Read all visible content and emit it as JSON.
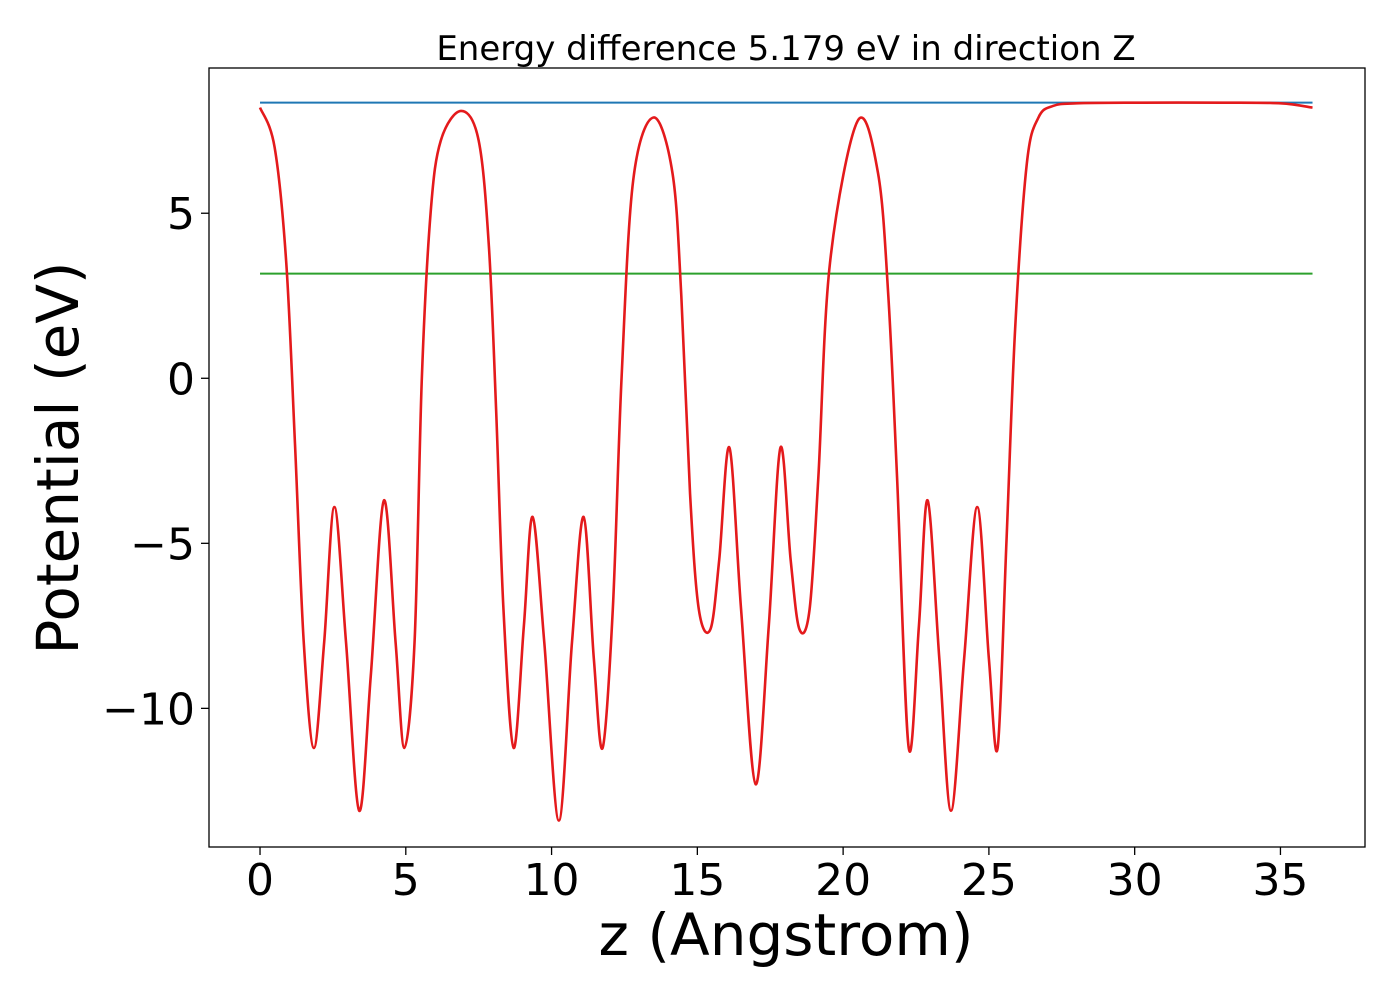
{
  "chart_data": {
    "type": "line",
    "title": "Energy difference 5.179 eV in direction Z",
    "xlabel": "z (Angstrom)",
    "ylabel": "Potential (eV)",
    "xlim": [
      -1.75,
      37.9
    ],
    "ylim": [
      -14.2,
      9.4
    ],
    "xticks": [
      0,
      5,
      10,
      15,
      20,
      25,
      30,
      35
    ],
    "yticks": [
      5,
      0,
      -5,
      -10
    ],
    "xtick_labels": [
      "0",
      "5",
      "10",
      "15",
      "20",
      "25",
      "30",
      "35"
    ],
    "ytick_labels": [
      "5",
      "0",
      "−5",
      "−10"
    ],
    "grid": false,
    "legend": "none",
    "series": [
      {
        "color": "#1f77b4",
        "style": "horizontal",
        "x": [
          0,
          36.1
        ],
        "y": [
          8.35,
          8.35
        ]
      },
      {
        "color": "#2ca02c",
        "style": "horizontal",
        "x": [
          0,
          36.1
        ],
        "y": [
          3.17,
          3.17
        ]
      },
      {
        "color": "#e41a1c",
        "style": "curve",
        "x": [
          0,
          0.5,
          0.9,
          1.2,
          1.5,
          1.85,
          2.2,
          2.55,
          2.95,
          3.4,
          3.8,
          4.25,
          4.65,
          4.95,
          5.3,
          5.55,
          5.85,
          6.2,
          6.9,
          7.5,
          7.85,
          8.1,
          8.35,
          8.7,
          9.05,
          9.35,
          9.75,
          10.25,
          10.7,
          11.1,
          11.45,
          11.75,
          12.1,
          12.4,
          12.8,
          13.5,
          14.15,
          14.45,
          14.75,
          15.05,
          15.45,
          15.75,
          16.1,
          16.5,
          17.0,
          17.45,
          17.85,
          18.2,
          18.5,
          18.85,
          19.15,
          19.55,
          20.5,
          21.2,
          21.55,
          21.85,
          22.25,
          22.6,
          22.9,
          23.3,
          23.7,
          24.15,
          24.6,
          25.0,
          25.3,
          25.6,
          25.9,
          26.3,
          26.7,
          27.2,
          28.0,
          30.0,
          33.0,
          35.0,
          36.1
        ],
        "y": [
          8.2,
          7.0,
          3.5,
          -2.0,
          -8.0,
          -11.2,
          -8.0,
          -3.9,
          -8.0,
          -13.1,
          -9.0,
          -3.7,
          -8.0,
          -11.2,
          -8.0,
          0.0,
          5.0,
          7.2,
          8.1,
          7.2,
          4.0,
          -1.0,
          -7.0,
          -11.2,
          -7.5,
          -4.2,
          -8.0,
          -13.4,
          -8.0,
          -4.2,
          -8.5,
          -11.2,
          -7.0,
          0.0,
          6.0,
          7.9,
          6.2,
          2.5,
          -3.5,
          -7.0,
          -7.6,
          -5.5,
          -2.1,
          -7.0,
          -12.3,
          -7.5,
          -2.1,
          -5.5,
          -7.6,
          -7.0,
          -3.0,
          3.5,
          7.8,
          6.2,
          2.5,
          -3.0,
          -11.2,
          -7.5,
          -3.7,
          -8.5,
          -13.1,
          -8.5,
          -3.9,
          -8.5,
          -11.2,
          -5.0,
          1.5,
          6.5,
          7.9,
          8.25,
          8.33,
          8.35,
          8.35,
          8.33,
          8.2
        ]
      }
    ]
  }
}
